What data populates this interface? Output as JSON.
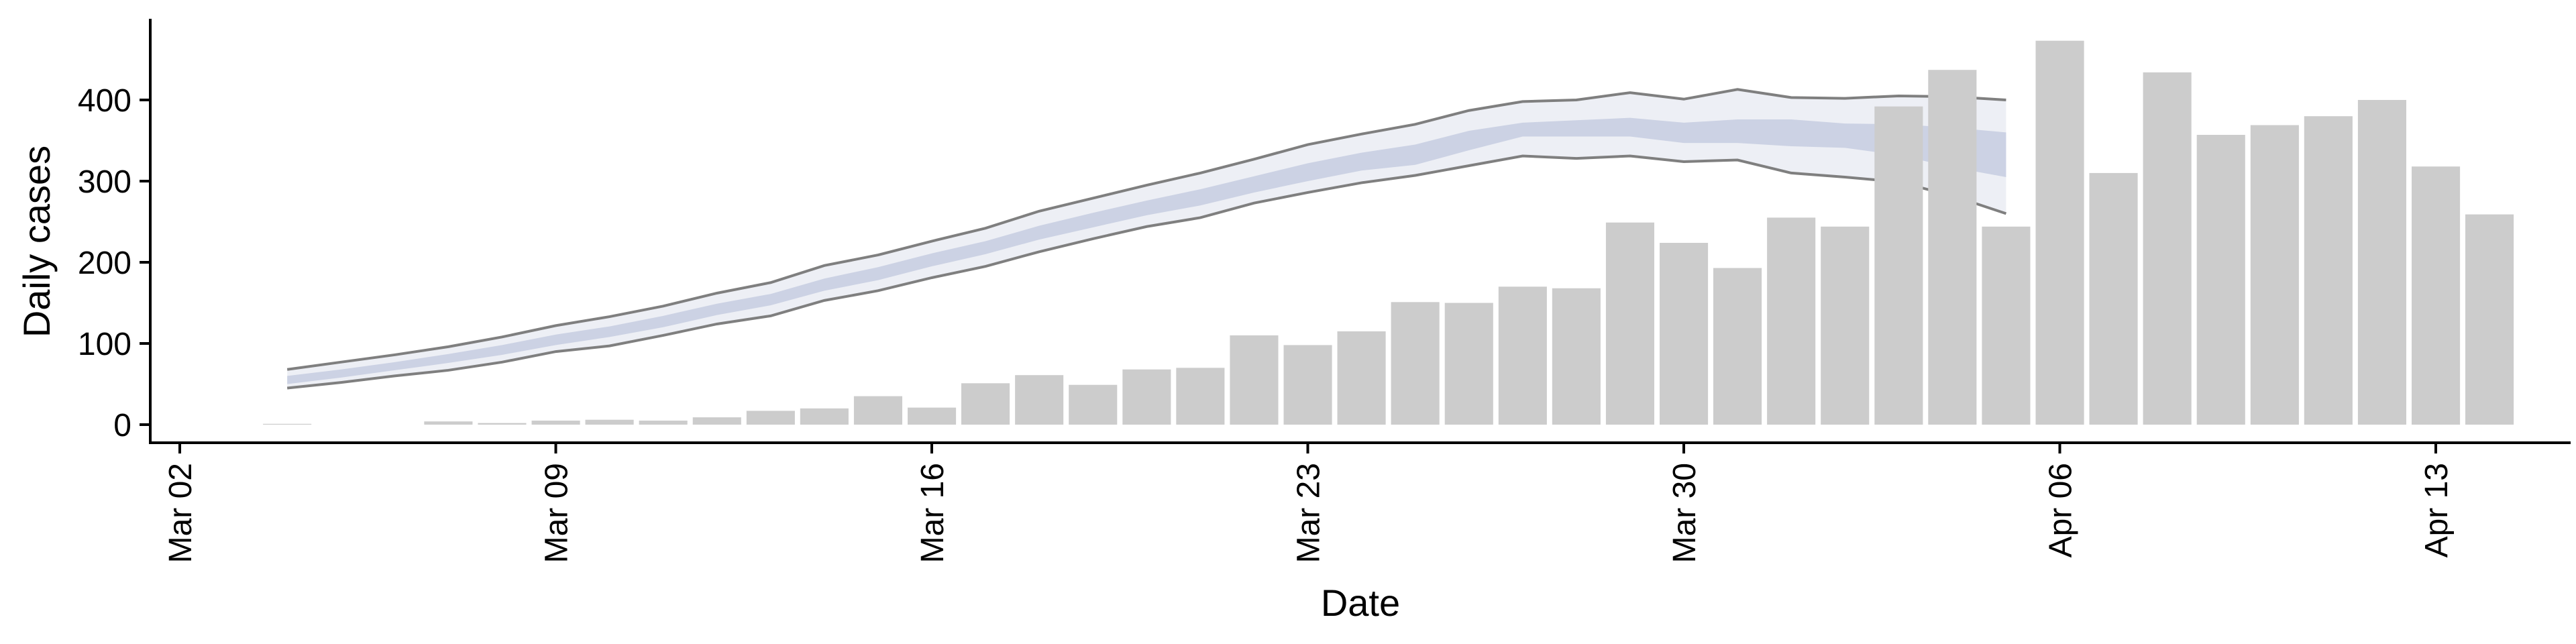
{
  "chart_data": {
    "type": "bar",
    "title": "",
    "xlabel": "Date",
    "ylabel": "Daily cases",
    "ylim": [
      -22,
      500
    ],
    "xlim": [
      "2020-03-02",
      "2020-04-15"
    ],
    "grid": false,
    "legend": "none",
    "x_ticks": [
      "2020-03-02",
      "2020-03-09",
      "2020-03-16",
      "2020-03-23",
      "2020-03-30",
      "2020-04-06",
      "2020-04-13"
    ],
    "x_tick_labels": [
      "Mar 02",
      "Mar 09",
      "Mar 16",
      "Mar 23",
      "Mar 30",
      "Apr 06",
      "Apr 13"
    ],
    "y_ticks": [
      0,
      100,
      200,
      300,
      400
    ],
    "y_tick_labels": [
      "0",
      "100",
      "200",
      "300",
      "400"
    ],
    "colors": {
      "bars": "#cccccc",
      "band_outer": "#e9ebf3",
      "band_inner": "#c6cce0",
      "band_edge_line": "#7f7f7f",
      "axis": "#000000"
    },
    "bars": {
      "dates": [
        "2020-03-04",
        "2020-03-05",
        "2020-03-06",
        "2020-03-07",
        "2020-03-08",
        "2020-03-09",
        "2020-03-10",
        "2020-03-11",
        "2020-03-12",
        "2020-03-13",
        "2020-03-14",
        "2020-03-15",
        "2020-03-16",
        "2020-03-17",
        "2020-03-18",
        "2020-03-19",
        "2020-03-20",
        "2020-03-21",
        "2020-03-22",
        "2020-03-23",
        "2020-03-24",
        "2020-03-25",
        "2020-03-26",
        "2020-03-27",
        "2020-03-28",
        "2020-03-29",
        "2020-03-30",
        "2020-03-31",
        "2020-04-01",
        "2020-04-02",
        "2020-04-03",
        "2020-04-04",
        "2020-04-05",
        "2020-04-06",
        "2020-04-07",
        "2020-04-08",
        "2020-04-09",
        "2020-04-10",
        "2020-04-11",
        "2020-04-12",
        "2020-04-13",
        "2020-04-14"
      ],
      "values": [
        1,
        0,
        0,
        4,
        2,
        5,
        6,
        5,
        9,
        17,
        20,
        35,
        21,
        51,
        61,
        49,
        68,
        70,
        110,
        98,
        115,
        151,
        150,
        170,
        168,
        249,
        224,
        193,
        255,
        244,
        392,
        437,
        244,
        473,
        310,
        434,
        357,
        369,
        380,
        400,
        318,
        259
      ]
    },
    "estimate": {
      "dates": [
        "2020-03-04",
        "2020-03-05",
        "2020-03-06",
        "2020-03-07",
        "2020-03-08",
        "2020-03-09",
        "2020-03-10",
        "2020-03-11",
        "2020-03-12",
        "2020-03-13",
        "2020-03-14",
        "2020-03-15",
        "2020-03-16",
        "2020-03-17",
        "2020-03-18",
        "2020-03-19",
        "2020-03-20",
        "2020-03-21",
        "2020-03-22",
        "2020-03-23",
        "2020-03-24",
        "2020-03-25",
        "2020-03-26",
        "2020-03-27",
        "2020-03-28",
        "2020-03-29",
        "2020-03-30",
        "2020-03-31",
        "2020-04-01",
        "2020-04-02",
        "2020-04-03",
        "2020-04-04",
        "2020-04-05"
      ],
      "lower_90": [
        45,
        52,
        60,
        67,
        77,
        90,
        97,
        110,
        124,
        134,
        153,
        165,
        181,
        195,
        213,
        229,
        244,
        255,
        273,
        286,
        298,
        307,
        319,
        331,
        328,
        331,
        324,
        326,
        310,
        305,
        299,
        282,
        260
      ],
      "upper_90": [
        68,
        77,
        86,
        96,
        108,
        122,
        133,
        146,
        162,
        175,
        196,
        209,
        226,
        242,
        263,
        279,
        295,
        310,
        327,
        345,
        358,
        370,
        387,
        398,
        400,
        409,
        401,
        413,
        403,
        402,
        405,
        404,
        400
      ],
      "lower_50": [
        50,
        58,
        67,
        76,
        86,
        98,
        108,
        120,
        135,
        147,
        165,
        178,
        195,
        210,
        228,
        243,
        258,
        270,
        286,
        300,
        313,
        320,
        338,
        355,
        355,
        355,
        347,
        347,
        343,
        341,
        332,
        317,
        305
      ],
      "upper_50": [
        60,
        68,
        77,
        87,
        98,
        111,
        121,
        134,
        149,
        161,
        180,
        194,
        211,
        226,
        245,
        261,
        276,
        290,
        306,
        322,
        335,
        345,
        362,
        372,
        375,
        378,
        372,
        376,
        376,
        371,
        370,
        366,
        360
      ]
    }
  }
}
